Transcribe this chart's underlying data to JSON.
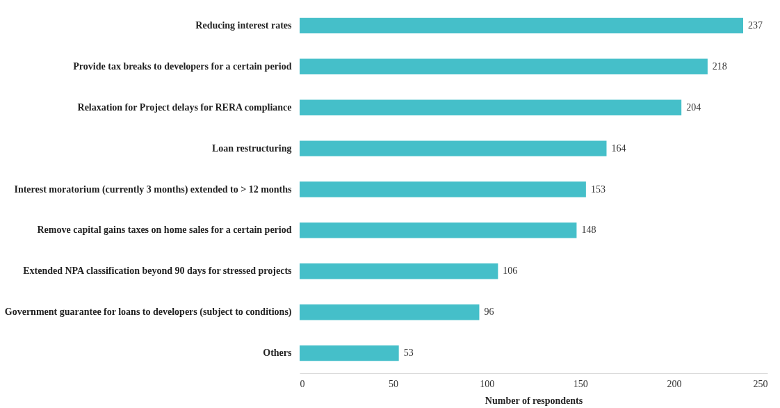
{
  "chart_data": {
    "type": "bar",
    "orientation": "horizontal",
    "xlabel": "Number of respondents",
    "categories": [
      "Reducing interest rates",
      "Provide tax breaks to developers for a certain period",
      "Relaxation for Project delays for RERA compliance",
      "Loan restructuring",
      "Interest moratorium (currently 3 months) extended to > 12 months",
      "Remove capital gains taxes on home sales for a certain period",
      "Extended NPA classification beyond 90 days for stressed projects",
      "Government guarantee for loans to developers (subject to conditions)",
      "Others"
    ],
    "values": [
      237,
      218,
      204,
      164,
      153,
      148,
      106,
      96,
      53
    ],
    "color": "#45bfc9",
    "xlim": [
      0,
      250
    ],
    "xticks": [
      0,
      50,
      100,
      150,
      200,
      250
    ],
    "data_labels": true,
    "grid": false
  }
}
